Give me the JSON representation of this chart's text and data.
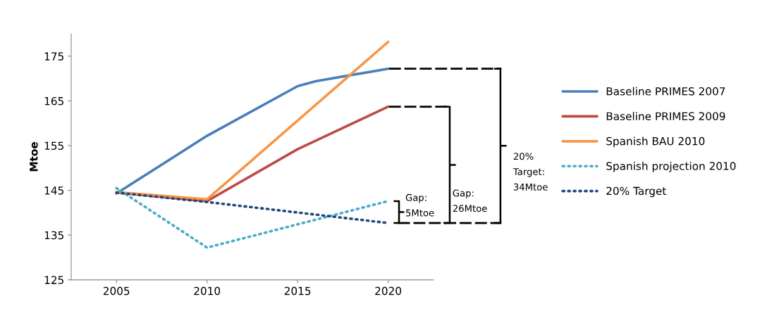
{
  "chart_data": {
    "type": "line",
    "ylabel": "Mtoe",
    "xlim": [
      2002.5,
      2022.5
    ],
    "xticks": [
      2005,
      2010,
      2015,
      2020
    ],
    "ylim": [
      125,
      180
    ],
    "yticks": [
      125,
      135,
      145,
      155,
      165,
      175
    ],
    "grid": false,
    "legend": "right",
    "marker": "none",
    "series": [
      {
        "name": "Baseline PRIMES 2007",
        "color": "#4a7ebb",
        "line_style": "solid",
        "x": [
          2005,
          2010,
          2015,
          2016,
          2020
        ],
        "values": [
          144.3,
          157.2,
          168.3,
          169.4,
          172.2
        ]
      },
      {
        "name": "Baseline PRIMES 2009",
        "color": "#be4b48",
        "line_style": "solid",
        "x": [
          2005,
          2010,
          2015,
          2020
        ],
        "values": [
          144.5,
          142.6,
          154.2,
          163.7
        ]
      },
      {
        "name": "Spanish BAU 2010",
        "color": "#f79646",
        "line_style": "solid",
        "x": [
          2005,
          2010,
          2020
        ],
        "values": [
          144.6,
          143.0,
          178.2
        ]
      },
      {
        "name": "Spanish projection 2010",
        "color": "#4bacc6",
        "line_style": "dotted",
        "x": [
          2005,
          2010,
          2020
        ],
        "values": [
          145.5,
          132.2,
          142.6
        ]
      },
      {
        "name": "20% Target",
        "color": "#1f497d",
        "line_style": "dotted",
        "x": [
          2005,
          2010,
          2020
        ],
        "values": [
          144.5,
          142.4,
          137.7
        ]
      }
    ],
    "annotations": [
      "Gap:\n5Mtoe",
      "Gap:\n26Mtoe",
      "20%\nTarget:\n34Mtoe"
    ]
  }
}
